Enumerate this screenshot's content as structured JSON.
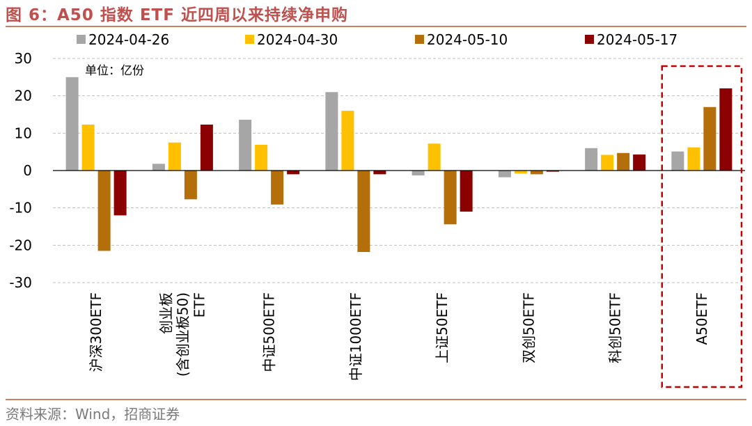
{
  "title": "图 6：A50 指数 ETF 近四周以来持续净申购",
  "source": "资料来源：Wind，招商证券",
  "chart_data": {
    "type": "bar",
    "unit_note": "单位：亿份",
    "categories": [
      [
        "沪深300ETF"
      ],
      [
        "创业板",
        "(含创业板50)",
        "ETF"
      ],
      [
        "中证500ETF"
      ],
      [
        "中证1000ETF"
      ],
      [
        "上证50ETF"
      ],
      [
        "双创50ETF"
      ],
      [
        "科创50ETF"
      ],
      [
        "A50ETF"
      ]
    ],
    "series": [
      {
        "name": "2024-04-26",
        "color": "#a6a6a6",
        "values": [
          25.0,
          1.8,
          13.6,
          21.0,
          -1.3,
          -1.8,
          6.0,
          5.1
        ]
      },
      {
        "name": "2024-04-30",
        "color": "#ffc000",
        "values": [
          12.3,
          7.5,
          6.9,
          16.0,
          7.2,
          -0.8,
          4.2,
          6.2
        ]
      },
      {
        "name": "2024-05-10",
        "color": "#b46e0a",
        "values": [
          -21.5,
          -7.7,
          -9.1,
          -21.8,
          -14.4,
          -1.0,
          4.7,
          17.0
        ]
      },
      {
        "name": "2024-05-17",
        "color": "#8b0000",
        "values": [
          -12.0,
          12.3,
          -1.0,
          -1.0,
          -11.0,
          -0.3,
          4.3,
          22.0
        ]
      }
    ],
    "ylim": [
      -30,
      30
    ],
    "yticks": [
      -30,
      -20,
      -10,
      0,
      10,
      20,
      30
    ],
    "grid": true,
    "legend_position": "top",
    "highlight_category": "A50ETF",
    "highlight_color": "#c00000"
  }
}
